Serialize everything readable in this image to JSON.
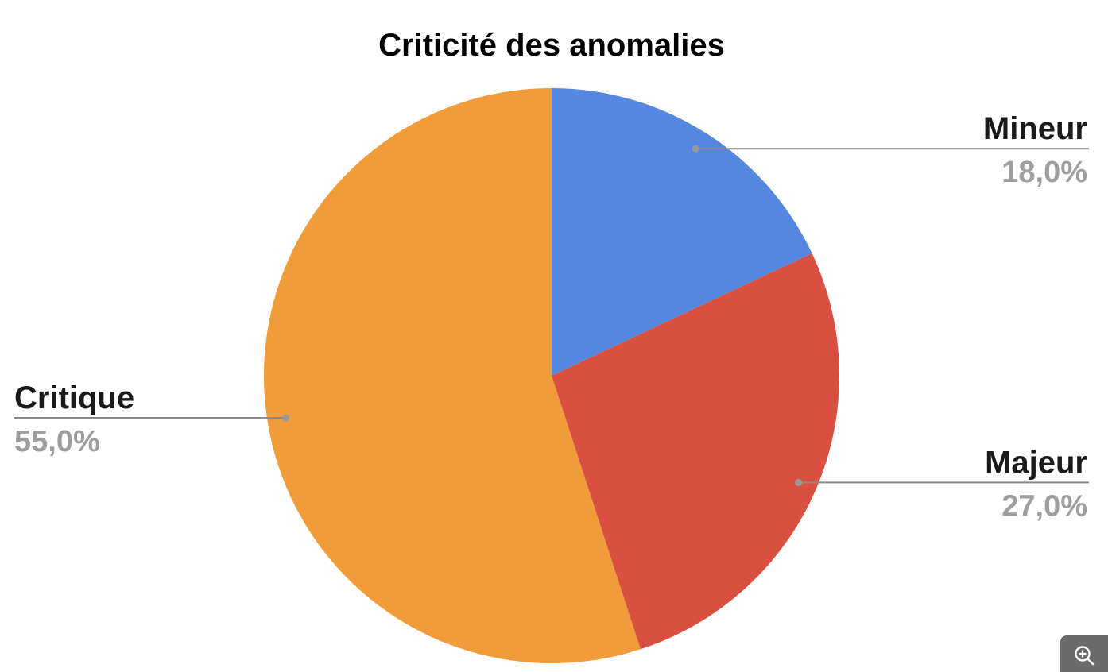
{
  "chart_data": {
    "type": "pie",
    "title": "Criticité des anomalies",
    "slices": [
      {
        "label": "Mineur",
        "value": 18.0,
        "percent_label": "18,0%",
        "color": "#5687e0"
      },
      {
        "label": "Majeur",
        "value": 27.0,
        "percent_label": "27,0%",
        "color": "#d95041"
      },
      {
        "label": "Critique",
        "value": 55.0,
        "percent_label": "55,0%",
        "color": "#f19c3a"
      }
    ],
    "start": "top",
    "direction": "clockwise",
    "label_style": "callout",
    "legend": "none"
  },
  "controls": {
    "zoom_icon": "zoom-in-icon"
  }
}
